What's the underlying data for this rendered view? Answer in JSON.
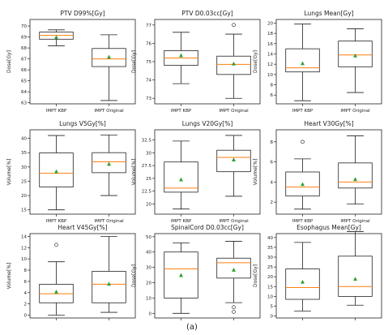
{
  "caption": "(a)",
  "chart_data": [
    {
      "type": "box",
      "title": "PTV D99%[Gy]",
      "ylabel": "Dose[Gy]",
      "ylim": [
        62.9,
        70.6
      ],
      "yticks": [
        63,
        64,
        65,
        66,
        67,
        68,
        69,
        70
      ],
      "categories": [
        "IMPT KBP",
        "IMPT Original"
      ],
      "boxes": [
        {
          "whislo": 68.2,
          "q1": 68.8,
          "med": 69.15,
          "q3": 69.45,
          "whishi": 69.65,
          "mean": 69.0,
          "fliers": []
        },
        {
          "whislo": 63.2,
          "q1": 66.3,
          "med": 67.0,
          "q3": 67.95,
          "whishi": 69.2,
          "mean": 67.2,
          "fliers": []
        }
      ]
    },
    {
      "type": "box",
      "title": "PTV D0.03cc[Gy]",
      "ylabel": "Dose[Gy]",
      "ylim": [
        72.7,
        77.3
      ],
      "yticks": [
        73,
        74,
        75,
        76,
        77
      ],
      "categories": [
        "IMPT KBP",
        "IMPT Original"
      ],
      "boxes": [
        {
          "whislo": 73.8,
          "q1": 74.8,
          "med": 75.2,
          "q3": 75.6,
          "whishi": 76.6,
          "mean": 75.35,
          "fliers": []
        },
        {
          "whislo": 73.0,
          "q1": 74.3,
          "med": 74.85,
          "q3": 75.3,
          "whishi": 76.5,
          "mean": 74.9,
          "fliers": [
            77.0
          ]
        }
      ]
    },
    {
      "type": "box",
      "title": "Lungs Mean[Gy]",
      "ylabel": "Dose[Gy]",
      "ylim": [
        4.3,
        20.7
      ],
      "yticks": [
        6,
        8,
        10,
        12,
        14,
        16,
        18,
        20
      ],
      "categories": [
        "IMPT KBP",
        "IMPT Original"
      ],
      "boxes": [
        {
          "whislo": 4.9,
          "q1": 10.5,
          "med": 11.3,
          "q3": 15.0,
          "whishi": 19.8,
          "mean": 12.2,
          "fliers": []
        },
        {
          "whislo": 6.5,
          "q1": 11.5,
          "med": 13.8,
          "q3": 16.5,
          "whishi": 18.9,
          "mean": 13.7,
          "fliers": []
        }
      ]
    },
    {
      "type": "box",
      "title": "Lungs V5Gy[%]",
      "ylabel": "Volume[%]",
      "ylim": [
        13.5,
        43
      ],
      "yticks": [
        15,
        20,
        25,
        30,
        35,
        40
      ],
      "categories": [
        "IMPT KBP",
        "IMPT Original"
      ],
      "boxes": [
        {
          "whislo": 15.0,
          "q1": 23.0,
          "med": 27.8,
          "q3": 34.9,
          "whishi": 41.0,
          "mean": 28.5,
          "fliers": []
        },
        {
          "whislo": 20.0,
          "q1": 28.0,
          "med": 31.8,
          "q3": 35.0,
          "whishi": 41.2,
          "mean": 31.1,
          "fliers": []
        }
      ]
    },
    {
      "type": "box",
      "title": "Lungs V20Gy[%]",
      "ylabel": "Volume[%]",
      "ylim": [
        18,
        34.5
      ],
      "yticks": [
        20,
        22.5,
        25,
        27.5,
        30,
        32.5
      ],
      "categories": [
        "IMPT KBP",
        "IMPT Original"
      ],
      "boxes": [
        {
          "whislo": 19.0,
          "q1": 22.3,
          "med": 23.1,
          "q3": 28.2,
          "whishi": 32.3,
          "mean": 24.8,
          "fliers": []
        },
        {
          "whislo": 21.5,
          "q1": 26.3,
          "med": 29.1,
          "q3": 30.5,
          "whishi": 33.4,
          "mean": 28.7,
          "fliers": []
        }
      ]
    },
    {
      "type": "box",
      "title": "Heart V30Gy[%]",
      "ylabel": "Volume[%]",
      "ylim": [
        0.8,
        9.2
      ],
      "yticks": [
        2,
        4,
        6,
        8
      ],
      "categories": [
        "IMPT KBP",
        "IMPT Original"
      ],
      "boxes": [
        {
          "whislo": 1.3,
          "q1": 2.6,
          "med": 3.5,
          "q3": 5.0,
          "whishi": 6.3,
          "mean": 3.8,
          "fliers": [
            8.0
          ]
        },
        {
          "whislo": 1.8,
          "q1": 3.4,
          "med": 4.0,
          "q3": 5.9,
          "whishi": 8.6,
          "mean": 4.3,
          "fliers": []
        }
      ]
    },
    {
      "type": "box",
      "title": "Heart V45Gy[%]",
      "ylabel": "Volume[%]",
      "ylim": [
        -0.5,
        14.5
      ],
      "yticks": [
        0,
        2,
        4,
        6,
        8,
        10,
        12,
        14
      ],
      "categories": [
        "IMPT KBP",
        "IMPT Original"
      ],
      "boxes": [
        {
          "whislo": 0.0,
          "q1": 2.2,
          "med": 3.8,
          "q3": 5.5,
          "whishi": 9.5,
          "mean": 4.2,
          "fliers": [
            12.5
          ]
        },
        {
          "whislo": 0.5,
          "q1": 2.2,
          "med": 5.5,
          "q3": 7.8,
          "whishi": 14.0,
          "mean": 5.6,
          "fliers": []
        }
      ]
    },
    {
      "type": "box",
      "title": "SpinalCord D0.03cc[Gy]",
      "ylabel": "Dose[Gy]",
      "ylim": [
        -3,
        52
      ],
      "yticks": [
        0,
        10,
        20,
        30,
        40,
        50
      ],
      "categories": [
        "IMPT KBP",
        "IMPT Original"
      ],
      "boxes": [
        {
          "whislo": 0.0,
          "q1": 10.0,
          "med": 29.0,
          "q3": 40.0,
          "whishi": 46.0,
          "mean": 25.0,
          "fliers": []
        },
        {
          "whislo": 7.0,
          "q1": 23.0,
          "med": 33.0,
          "q3": 36.0,
          "whishi": 47.0,
          "mean": 28.5,
          "fliers": [
            1.0,
            4.0
          ]
        }
      ]
    },
    {
      "type": "box",
      "title": "Esophagus Mean[Gy]",
      "ylabel": "Dose[Gy]",
      "ylim": [
        -1,
        42
      ],
      "yticks": [
        0,
        5,
        10,
        15,
        20,
        25,
        30,
        35,
        40
      ],
      "categories": [
        "IMPT KBP",
        "IMPT Original"
      ],
      "boxes": [
        {
          "whislo": 2.5,
          "q1": 8.5,
          "med": 14.5,
          "q3": 24.0,
          "whishi": 37.5,
          "mean": 17.5,
          "fliers": []
        },
        {
          "whislo": 5.5,
          "q1": 10.0,
          "med": 15.0,
          "q3": 30.5,
          "whishi": 43.0,
          "mean": 19.0,
          "fliers": []
        }
      ]
    }
  ],
  "colors": {
    "box_edge": "#222222",
    "median": "#ff7f0e",
    "mean": "#2ca02c",
    "flier": "#333333",
    "text": "#222222"
  }
}
